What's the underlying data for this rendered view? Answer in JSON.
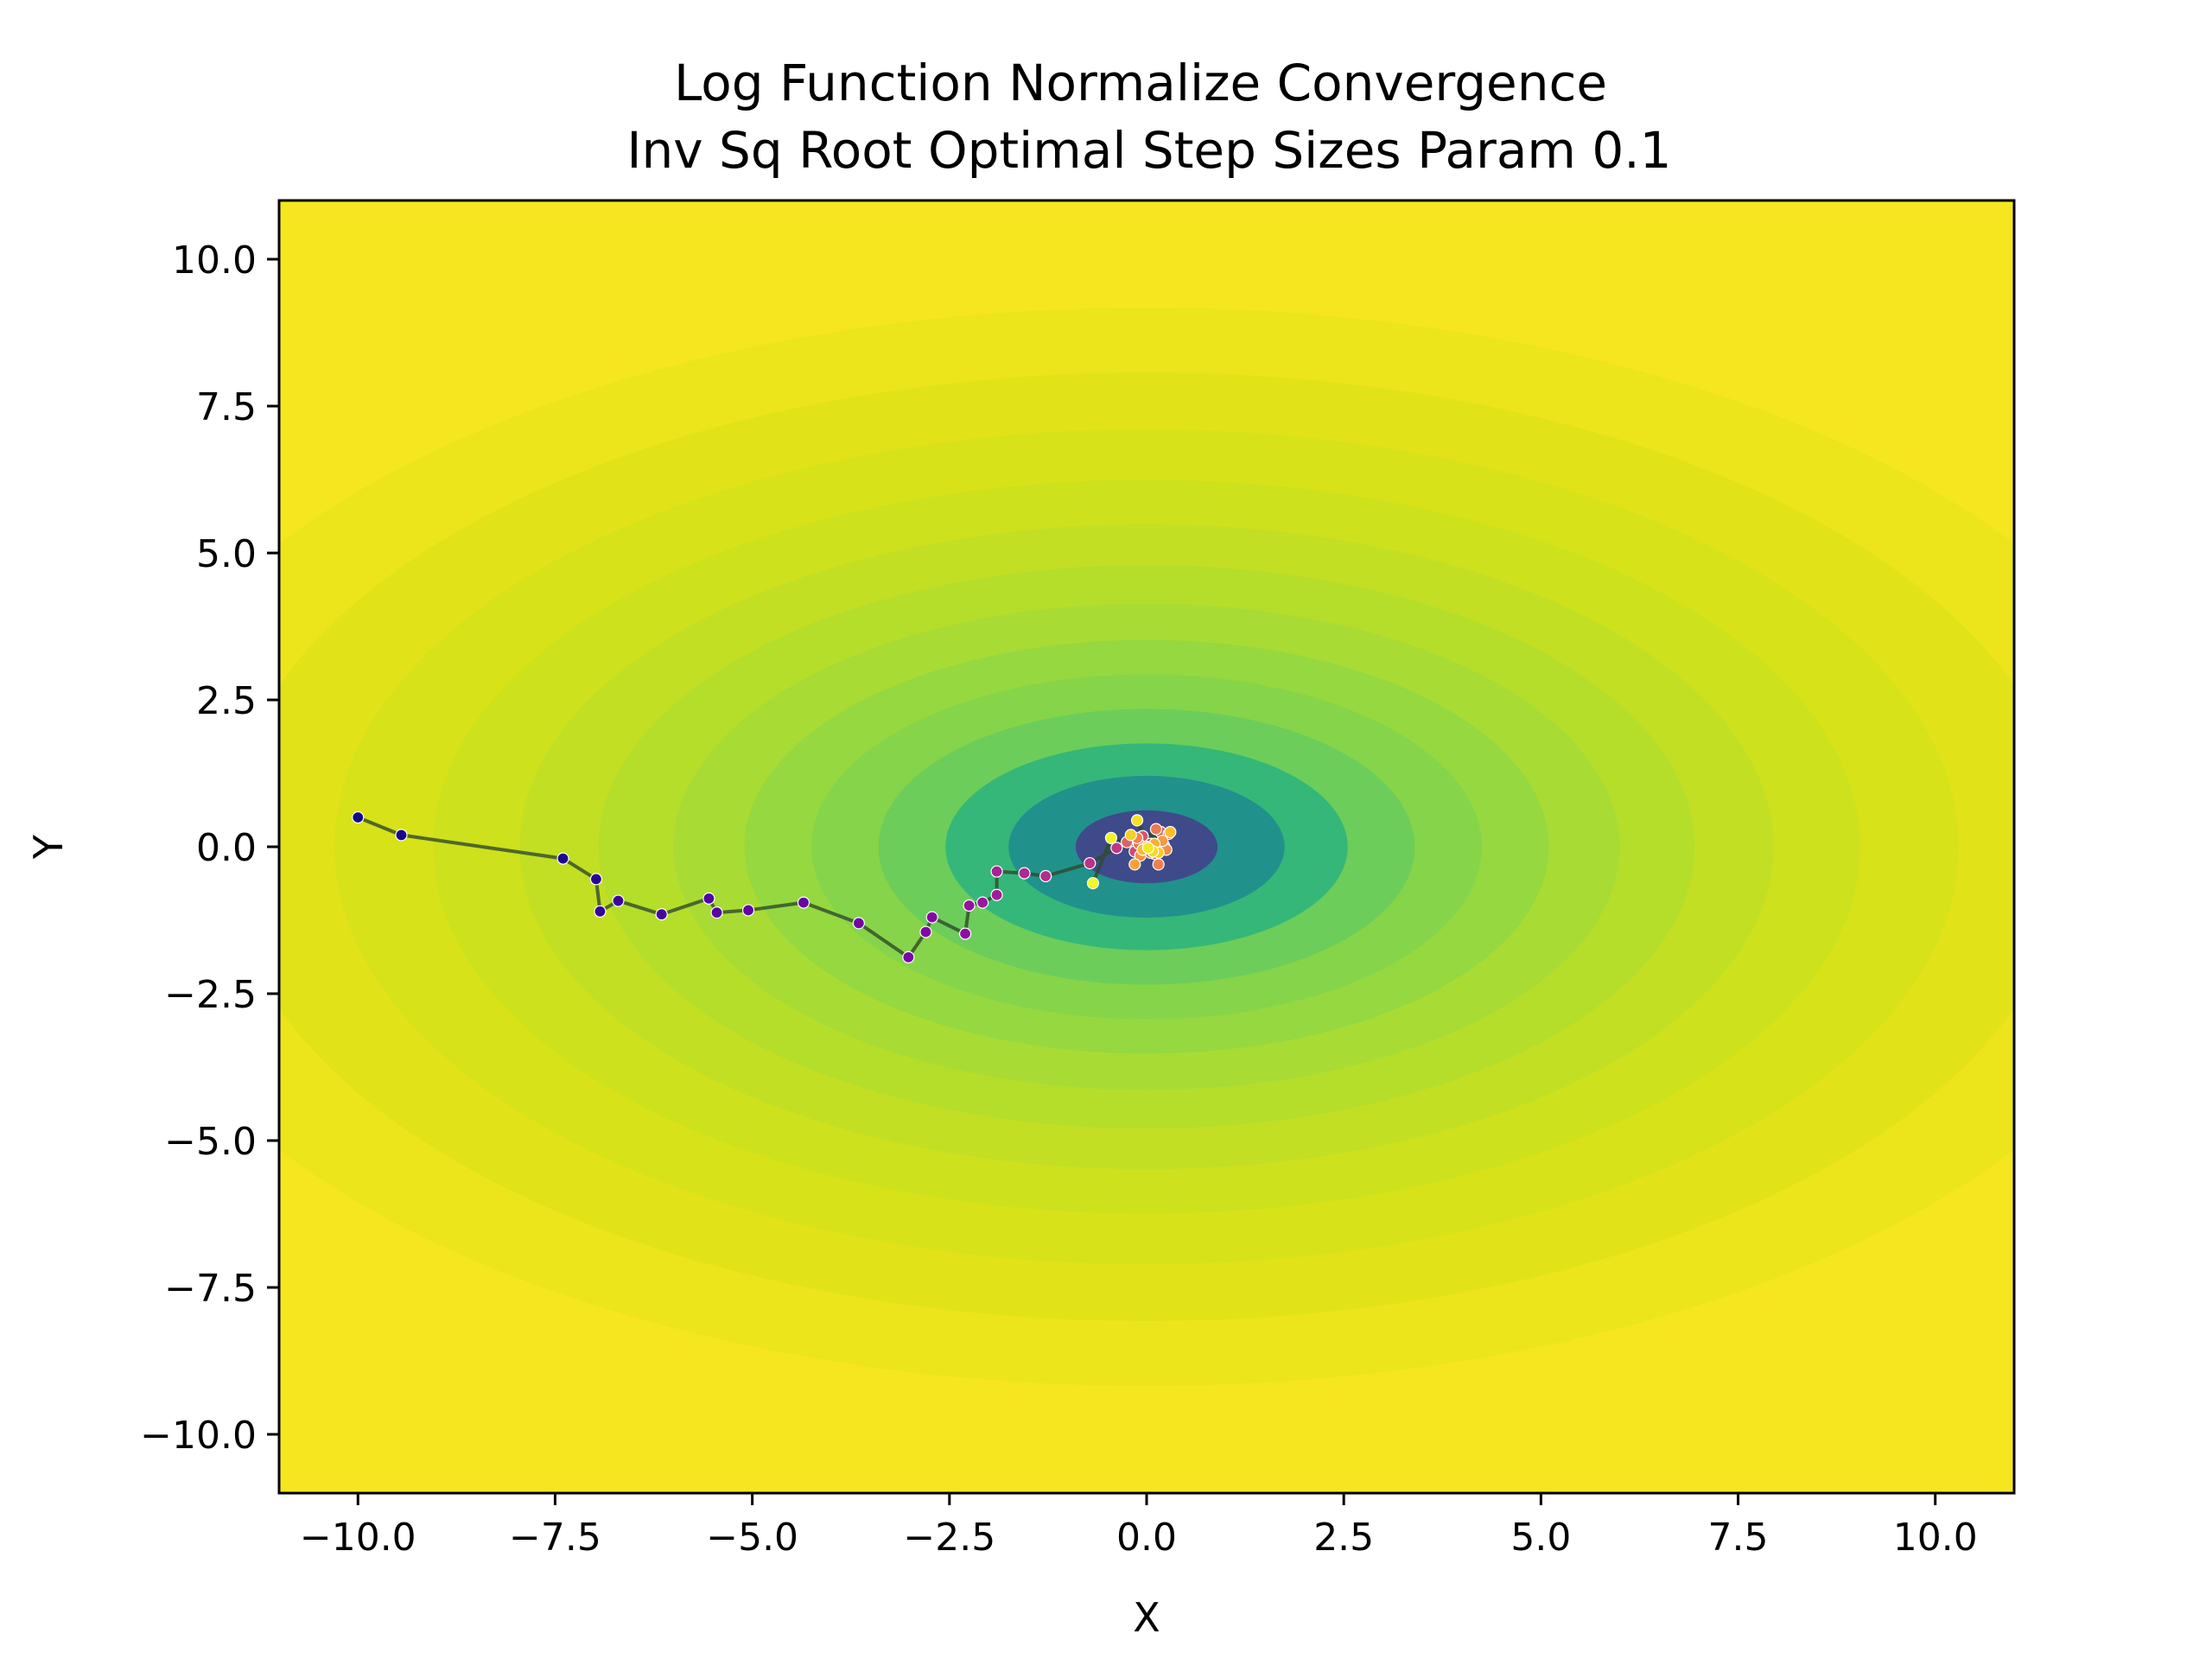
{
  "chart_data": {
    "type": "scatter",
    "title": "Log Function Normalize Convergence",
    "subtitle": "Inv Sq Root Optimal Step Sizes Param 0.1",
    "xlabel": "X",
    "ylabel": "Y",
    "xlim": [
      -11,
      11
    ],
    "ylim": [
      -11,
      11
    ],
    "xticks": [
      -10,
      -7.5,
      -5,
      -2.5,
      0,
      2.5,
      5,
      7.5,
      10
    ],
    "yticks": [
      -10,
      -7.5,
      -5,
      -2.5,
      0,
      2.5,
      5,
      7.5,
      10
    ],
    "xtick_labels": [
      "−10.0",
      "−7.5",
      "−5.0",
      "−2.5",
      "0.0",
      "2.5",
      "5.0",
      "7.5",
      "10.0"
    ],
    "ytick_labels": [
      "−10.0",
      "−7.5",
      "−5.0",
      "−2.5",
      "0.0",
      "2.5",
      "5.0",
      "7.5",
      "10.0"
    ],
    "grid": false,
    "background": {
      "kind": "filled-contour",
      "colormap": "viridis",
      "center": [
        0,
        0
      ],
      "level_radii_x": [
        0.9,
        1.75,
        2.55,
        3.4,
        4.25,
        5.1,
        6.0,
        6.95,
        7.95,
        9.05,
        10.3,
        11.7,
        13.3,
        15.1
      ],
      "aspect_y_over_x": 0.69,
      "colors": [
        "#3f4a8a",
        "#21918c",
        "#35b779",
        "#6ccd5a",
        "#86d449",
        "#95d840",
        "#a8db34",
        "#b5de2b",
        "#c2df23",
        "#cde11d",
        "#d8e219",
        "#e1e318",
        "#ece51b",
        "#f6e620"
      ]
    },
    "path_line_color": "#2f4a2a",
    "point_colormap": "plasma",
    "series": [
      {
        "points": [
          [
            -10.0,
            0.5
          ],
          [
            -9.45,
            0.2
          ],
          [
            -7.4,
            -0.2
          ],
          [
            -6.98,
            -0.55
          ],
          [
            -6.93,
            -1.1
          ],
          [
            -6.7,
            -0.92
          ],
          [
            -6.15,
            -1.15
          ],
          [
            -5.55,
            -0.88
          ],
          [
            -5.45,
            -1.12
          ],
          [
            -5.05,
            -1.08
          ],
          [
            -4.35,
            -0.95
          ],
          [
            -3.65,
            -1.3
          ],
          [
            -3.02,
            -1.88
          ],
          [
            -2.8,
            -1.45
          ],
          [
            -2.72,
            -1.2
          ],
          [
            -2.3,
            -1.48
          ],
          [
            -2.25,
            -1.0
          ],
          [
            -2.08,
            -0.95
          ],
          [
            -1.9,
            -0.82
          ],
          [
            -1.9,
            -0.42
          ],
          [
            -1.55,
            -0.45
          ],
          [
            -1.28,
            -0.5
          ],
          [
            -0.72,
            -0.28
          ],
          [
            -0.38,
            -0.02
          ],
          [
            0.05,
            0.05
          ],
          [
            0.22,
            0.02
          ],
          [
            -0.15,
            -0.08
          ],
          [
            0.1,
            -0.12
          ],
          [
            -0.05,
            0.18
          ],
          [
            0.18,
            0.25
          ],
          [
            -0.25,
            0.08
          ],
          [
            0.28,
            0.22
          ],
          [
            0.05,
            -0.1
          ],
          [
            -0.1,
            0.05
          ],
          [
            0.12,
            0.3
          ],
          [
            0.15,
            -0.3
          ],
          [
            -0.12,
            0.15
          ],
          [
            0.25,
            -0.05
          ],
          [
            -0.08,
            -0.15
          ],
          [
            0.2,
            0.1
          ],
          [
            -0.15,
            -0.3
          ],
          [
            0.0,
            0.0
          ],
          [
            0.1,
            0.05
          ],
          [
            -0.05,
            -0.05
          ],
          [
            0.3,
            0.25
          ],
          [
            0.15,
            -0.1
          ],
          [
            -0.2,
            0.2
          ],
          [
            0.08,
            -0.08
          ],
          [
            -0.12,
            0.45
          ],
          [
            0.02,
            -0.02
          ],
          [
            -0.45,
            0.15
          ],
          [
            -0.68,
            -0.62
          ]
        ]
      }
    ]
  }
}
